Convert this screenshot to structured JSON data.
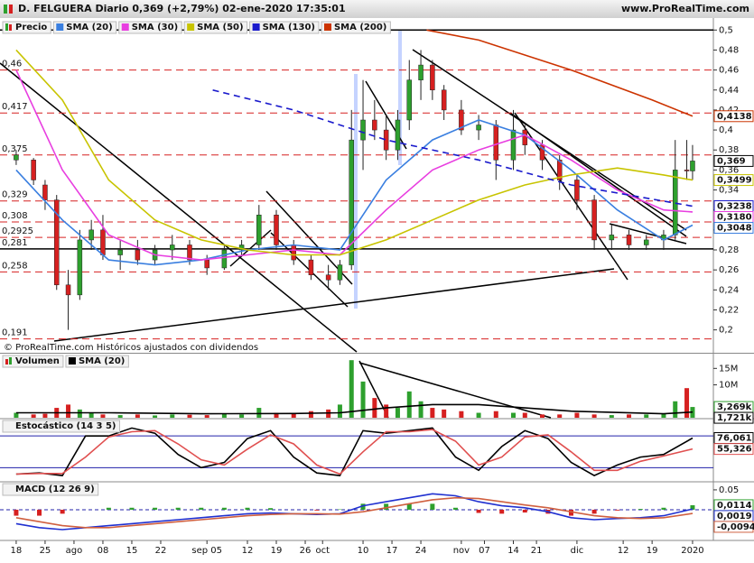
{
  "header": {
    "title": "D. FELGUERA Diario 0,369 (+2,79%) 02-ene-2020 17:35:01",
    "site": "www.ProRealTime.com"
  },
  "footer": "© ProRealTime.com Históricos ajustados con dividendos",
  "chart_data": [
    {
      "type": "candlestick",
      "name": "Precio",
      "up_color": "#2ea02e",
      "down_color": "#d62020",
      "x": [
        0,
        3,
        5,
        7,
        9,
        11,
        13,
        15,
        18,
        21,
        24,
        27,
        30,
        33,
        36,
        39,
        42,
        45,
        48,
        51,
        54,
        56,
        58,
        60,
        62,
        64,
        66,
        68,
        70,
        72,
        74,
        77,
        80,
        83,
        86,
        88,
        91,
        94,
        97,
        100,
        103,
        106,
        109,
        112,
        114,
        116,
        117
      ],
      "open": [
        0.37,
        0.37,
        0.345,
        0.33,
        0.245,
        0.235,
        0.29,
        0.3,
        0.275,
        0.28,
        0.27,
        0.28,
        0.285,
        0.27,
        0.262,
        0.28,
        0.285,
        0.315,
        0.285,
        0.27,
        0.255,
        0.25,
        0.265,
        0.39,
        0.41,
        0.4,
        0.38,
        0.41,
        0.45,
        0.465,
        0.44,
        0.42,
        0.4,
        0.405,
        0.37,
        0.4,
        0.385,
        0.37,
        0.35,
        0.33,
        0.29,
        0.295,
        0.285,
        0.29,
        0.295,
        0.36,
        0.359
      ],
      "high": [
        0.38,
        0.372,
        0.35,
        0.335,
        0.26,
        0.3,
        0.31,
        0.315,
        0.29,
        0.29,
        0.285,
        0.295,
        0.29,
        0.275,
        0.285,
        0.29,
        0.325,
        0.32,
        0.29,
        0.275,
        0.265,
        0.27,
        0.42,
        0.45,
        0.43,
        0.415,
        0.42,
        0.47,
        0.48,
        0.47,
        0.445,
        0.43,
        0.415,
        0.41,
        0.42,
        0.405,
        0.39,
        0.375,
        0.355,
        0.335,
        0.305,
        0.3,
        0.295,
        0.3,
        0.39,
        0.39,
        0.385
      ],
      "low": [
        0.365,
        0.345,
        0.32,
        0.24,
        0.2,
        0.23,
        0.28,
        0.27,
        0.26,
        0.265,
        0.265,
        0.27,
        0.265,
        0.255,
        0.26,
        0.275,
        0.28,
        0.28,
        0.265,
        0.25,
        0.24,
        0.245,
        0.26,
        0.36,
        0.39,
        0.37,
        0.37,
        0.4,
        0.43,
        0.43,
        0.41,
        0.395,
        0.39,
        0.35,
        0.36,
        0.375,
        0.36,
        0.34,
        0.32,
        0.28,
        0.28,
        0.28,
        0.28,
        0.28,
        0.29,
        0.35,
        0.35
      ],
      "close": [
        0.375,
        0.35,
        0.33,
        0.245,
        0.235,
        0.29,
        0.3,
        0.275,
        0.28,
        0.27,
        0.28,
        0.285,
        0.27,
        0.262,
        0.28,
        0.285,
        0.315,
        0.285,
        0.27,
        0.255,
        0.25,
        0.265,
        0.39,
        0.41,
        0.4,
        0.38,
        0.41,
        0.45,
        0.465,
        0.44,
        0.42,
        0.4,
        0.405,
        0.37,
        0.4,
        0.385,
        0.37,
        0.35,
        0.33,
        0.29,
        0.295,
        0.285,
        0.29,
        0.295,
        0.36,
        0.359,
        0.369
      ],
      "overlays": [
        {
          "name": "SMA (20)",
          "color": "#3a7fe0",
          "x": [
            0,
            8,
            16,
            24,
            32,
            40,
            48,
            56,
            64,
            72,
            80,
            88,
            96,
            104,
            112,
            117
          ],
          "values": [
            0.36,
            0.31,
            0.27,
            0.265,
            0.27,
            0.28,
            0.285,
            0.28,
            0.35,
            0.39,
            0.41,
            0.395,
            0.36,
            0.32,
            0.29,
            0.3048
          ]
        },
        {
          "name": "SMA (30)",
          "color": "#e83ee0",
          "x": [
            0,
            8,
            16,
            24,
            32,
            40,
            48,
            56,
            64,
            72,
            80,
            88,
            96,
            104,
            112,
            117
          ],
          "values": [
            0.46,
            0.36,
            0.295,
            0.275,
            0.27,
            0.275,
            0.28,
            0.275,
            0.32,
            0.36,
            0.38,
            0.395,
            0.37,
            0.34,
            0.32,
            0.318
          ]
        },
        {
          "name": "SMA (50)",
          "color": "#c8c400",
          "x": [
            0,
            8,
            16,
            24,
            32,
            40,
            48,
            56,
            64,
            72,
            80,
            88,
            96,
            104,
            112,
            117
          ],
          "values": [
            0.48,
            0.43,
            0.35,
            0.31,
            0.29,
            0.28,
            0.275,
            0.275,
            0.29,
            0.31,
            0.33,
            0.345,
            0.355,
            0.362,
            0.355,
            0.3499
          ]
        },
        {
          "name": "SMA (130)",
          "color": "#1a1acc",
          "dashed": true,
          "x": [
            34,
            48,
            64,
            80,
            96,
            117
          ],
          "values": [
            0.44,
            0.42,
            0.39,
            0.37,
            0.345,
            0.3238
          ]
        },
        {
          "name": "SMA (200)",
          "color": "#cc3300",
          "x": [
            71,
            80,
            96,
            110,
            117
          ],
          "values": [
            0.5,
            0.49,
            0.46,
            0.43,
            0.4138
          ]
        }
      ],
      "levels": [
        {
          "value": 0.5,
          "style": "solid"
        },
        {
          "value": 0.46,
          "label": "0,46"
        },
        {
          "value": 0.417,
          "label": "0,417"
        },
        {
          "value": 0.375,
          "label": "0,375"
        },
        {
          "value": 0.329,
          "label": "0,329"
        },
        {
          "value": 0.308,
          "label": "0,308"
        },
        {
          "value": 0.2925,
          "label": "0,2925"
        },
        {
          "value": 0.281,
          "label": "0,281",
          "style": "solid"
        },
        {
          "value": 0.258,
          "label": "0,258"
        },
        {
          "value": 0.191,
          "label": "0,191"
        }
      ],
      "markers": [
        {
          "value": 0.4138,
          "label": "0,4138",
          "color": "#cc3300"
        },
        {
          "value": 0.369,
          "label": "0,369",
          "color": "#000000"
        },
        {
          "value": 0.3499,
          "label": "0,3499",
          "color": "#c8c400"
        },
        {
          "value": 0.3238,
          "label": "0,3238",
          "color": "#1a1acc"
        },
        {
          "value": 0.318,
          "label": "0,3180",
          "color": "#e83ee0"
        },
        {
          "value": 0.3048,
          "label": "0,3048",
          "color": "#3a7fe0"
        }
      ],
      "ylim": [
        0.178,
        0.512
      ],
      "yticks": [
        {
          "value": 0.2,
          "label": "0,2"
        },
        {
          "value": 0.22,
          "label": "0,22"
        },
        {
          "value": 0.24,
          "label": "0,24"
        },
        {
          "value": 0.26,
          "label": "0,26"
        },
        {
          "value": 0.28,
          "label": "0,28"
        },
        {
          "value": 0.3,
          "label": "0,3"
        },
        {
          "value": 0.32,
          "label": "0,32"
        },
        {
          "value": 0.34,
          "label": "0,34"
        },
        {
          "value": 0.36,
          "label": "0,36"
        },
        {
          "value": 0.38,
          "label": "0,38"
        },
        {
          "value": 0.4,
          "label": "0,4"
        },
        {
          "value": 0.42,
          "label": "0,42"
        },
        {
          "value": 0.44,
          "label": "0,44"
        },
        {
          "value": 0.46,
          "label": "0,46"
        },
        {
          "value": 0.48,
          "label": "0,48"
        },
        {
          "value": 0.5,
          "label": "0,5"
        }
      ],
      "xlim": [
        -2.8,
        120.6
      ],
      "xticks": [
        {
          "value": 0,
          "label": "18"
        },
        {
          "value": 5,
          "label": "25"
        },
        {
          "value": 10,
          "label": "ago"
        },
        {
          "value": 15,
          "label": "08"
        },
        {
          "value": 20,
          "label": "15"
        },
        {
          "value": 25,
          "label": "22"
        },
        {
          "value": 33,
          "label": "sep 05"
        },
        {
          "value": 40,
          "label": "12"
        },
        {
          "value": 45,
          "label": "19"
        },
        {
          "value": 50,
          "label": "26"
        },
        {
          "value": 53,
          "label": "oct"
        },
        {
          "value": 60,
          "label": "10"
        },
        {
          "value": 65,
          "label": "17"
        },
        {
          "value": 70,
          "label": "24"
        },
        {
          "value": 77,
          "label": "nov"
        },
        {
          "value": 81,
          "label": "07"
        },
        {
          "value": 86,
          "label": "14"
        },
        {
          "value": 90,
          "label": "21"
        },
        {
          "value": 97,
          "label": "dic"
        },
        {
          "value": 105,
          "label": "12"
        },
        {
          "value": 110,
          "label": "19"
        },
        {
          "value": 117,
          "label": "2020"
        }
      ]
    },
    {
      "type": "bar",
      "name": "Volumen",
      "x": [
        0,
        3,
        5,
        7,
        9,
        11,
        13,
        15,
        18,
        21,
        24,
        27,
        30,
        33,
        36,
        39,
        42,
        45,
        48,
        51,
        54,
        56,
        58,
        60,
        62,
        64,
        66,
        68,
        70,
        72,
        74,
        77,
        80,
        83,
        86,
        88,
        91,
        94,
        97,
        100,
        103,
        106,
        109,
        112,
        114,
        116,
        117
      ],
      "values": [
        1.5,
        1,
        1.2,
        3,
        4,
        2.5,
        1.5,
        1,
        0.8,
        1,
        0.7,
        1,
        0.9,
        0.8,
        1.2,
        1,
        3,
        1.5,
        1.5,
        2,
        2.5,
        4,
        17.5,
        11,
        6,
        4,
        3,
        8,
        5,
        3,
        2.5,
        2,
        1.5,
        2,
        1.5,
        1.5,
        1,
        1,
        1.5,
        1,
        0.8,
        1,
        1,
        1.2,
        5,
        9,
        3.269
      ],
      "overlays": [
        {
          "name": "SMA (20)",
          "color": "#000000",
          "x": [
            0,
            16,
            32,
            48,
            56,
            64,
            72,
            80,
            96,
            112,
            117
          ],
          "values": [
            1.5,
            1.5,
            1.2,
            1.3,
            1.5,
            3,
            4,
            4,
            2,
            1.2,
            1.721
          ]
        }
      ],
      "markers": [
        {
          "value": 3.269,
          "label": "3,269k",
          "color": "#2ea02e"
        },
        {
          "value": 1.721,
          "label": "1,721k",
          "color": "#000000"
        }
      ],
      "ylim": [
        0,
        19.2
      ],
      "yticks": [
        {
          "value": 10,
          "label": "10M"
        },
        {
          "value": 15,
          "label": "15M"
        }
      ]
    },
    {
      "type": "line",
      "name": "Estocástico (14 3 5)",
      "x": [
        0,
        4,
        8,
        12,
        16,
        20,
        24,
        28,
        32,
        36,
        40,
        44,
        48,
        52,
        56,
        60,
        64,
        68,
        72,
        76,
        80,
        84,
        88,
        92,
        96,
        100,
        104,
        108,
        112,
        117
      ],
      "series": [
        {
          "color": "#000000",
          "values": [
            8,
            10,
            5,
            80,
            80,
            95,
            85,
            45,
            20,
            30,
            75,
            90,
            40,
            10,
            5,
            90,
            85,
            90,
            95,
            40,
            15,
            60,
            90,
            75,
            30,
            5,
            25,
            40,
            45,
            76.061
          ]
        },
        {
          "color": "#e05050",
          "values": [
            8,
            9,
            9,
            40,
            78,
            88,
            90,
            65,
            35,
            25,
            55,
            82,
            65,
            25,
            8,
            50,
            88,
            88,
            92,
            70,
            25,
            40,
            78,
            82,
            50,
            15,
            15,
            32,
            42,
            55.326
          ]
        }
      ],
      "levels": [
        20,
        80
      ],
      "level_color": "#2020aa",
      "markers": [
        {
          "value": 76.061,
          "label": "76,061",
          "color": "#000000"
        },
        {
          "value": 55.326,
          "label": "55,326",
          "color": "#e05050"
        }
      ],
      "ylim": [
        -5,
        111
      ]
    },
    {
      "type": "macd",
      "name": "MACD (12 26 9)",
      "up_color": "#2ea02e",
      "down_color": "#d62020",
      "x": [
        0,
        4,
        8,
        12,
        16,
        20,
        24,
        28,
        32,
        36,
        40,
        44,
        48,
        52,
        56,
        60,
        64,
        68,
        72,
        76,
        80,
        84,
        88,
        92,
        96,
        100,
        104,
        108,
        112,
        117
      ],
      "histogram": [
        -0.015,
        -0.015,
        -0.01,
        0,
        0.005,
        0.005,
        0.005,
        0.005,
        0.005,
        0.005,
        0.005,
        0.004,
        0,
        -0.002,
        0.001,
        0.015,
        0.015,
        0.015,
        0.015,
        0.005,
        -0.008,
        -0.01,
        -0.007,
        -0.01,
        -0.015,
        -0.01,
        -0.002,
        0.002,
        0.005,
        0.0114
      ],
      "series": [
        {
          "color": "#2030d0",
          "values": [
            -0.035,
            -0.045,
            -0.05,
            -0.045,
            -0.04,
            -0.035,
            -0.03,
            -0.025,
            -0.02,
            -0.015,
            -0.01,
            -0.008,
            -0.01,
            -0.012,
            -0.01,
            0.01,
            0.02,
            0.03,
            0.04,
            0.035,
            0.02,
            0.01,
            0.005,
            -0.005,
            -0.02,
            -0.025,
            -0.022,
            -0.02,
            -0.015,
            0.0019
          ]
        },
        {
          "color": "#d06040",
          "values": [
            -0.02,
            -0.03,
            -0.04,
            -0.045,
            -0.045,
            -0.04,
            -0.035,
            -0.03,
            -0.025,
            -0.02,
            -0.015,
            -0.012,
            -0.01,
            -0.01,
            -0.011,
            -0.005,
            0.005,
            0.015,
            0.025,
            0.03,
            0.028,
            0.02,
            0.012,
            0.005,
            -0.005,
            -0.015,
            -0.02,
            -0.022,
            -0.02,
            -0.0094
          ]
        }
      ],
      "levels": [
        0
      ],
      "level_color": "#2020aa",
      "markers": [
        {
          "value": 0.0114,
          "label": "0,0114",
          "color": "#2ea02e"
        },
        {
          "value": 0.0019,
          "label": "0,0019",
          "color": "#2030d0"
        },
        {
          "value": -0.0094,
          "label": "-0,0094",
          "color": "#d06040"
        }
      ],
      "ylim": [
        -0.075,
        0.068
      ],
      "yticks": [
        0.05
      ]
    }
  ]
}
